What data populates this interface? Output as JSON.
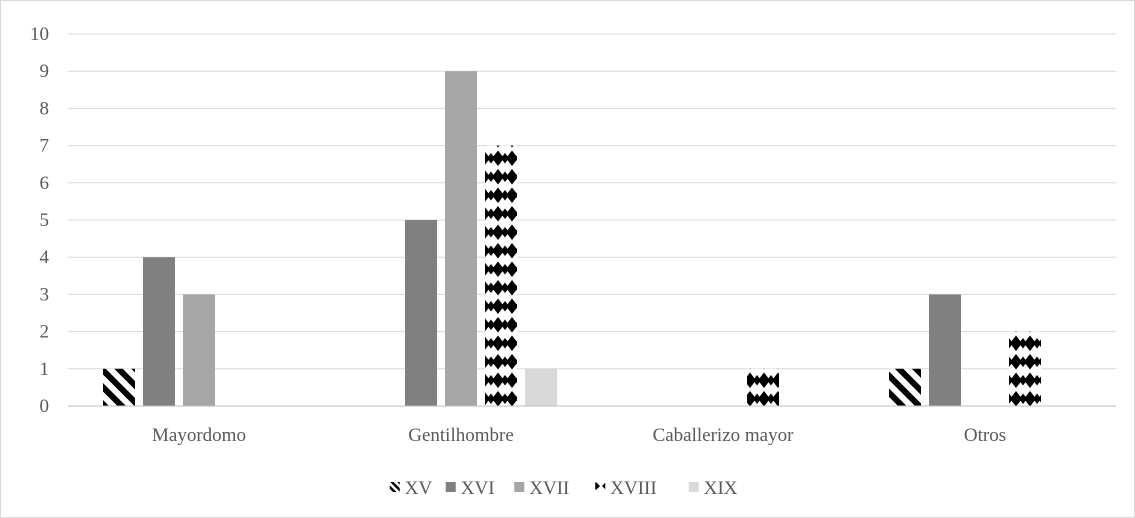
{
  "chart_data": {
    "type": "bar",
    "categories": [
      "Mayordomo",
      "Gentilhombre",
      "Caballerizo mayor",
      "Otros"
    ],
    "series": [
      {
        "name": "XV",
        "values": [
          1,
          0,
          0,
          1
        ],
        "fill": "pattern-diagonal",
        "color": "#000000"
      },
      {
        "name": "XVI",
        "values": [
          4,
          5,
          0,
          3
        ],
        "fill": "solid",
        "color": "#808080"
      },
      {
        "name": "XVII",
        "values": [
          3,
          9,
          0,
          0
        ],
        "fill": "solid",
        "color": "#a6a6a6"
      },
      {
        "name": "XVIII",
        "values": [
          0,
          7,
          1,
          2
        ],
        "fill": "pattern-diamond",
        "color": "#000000"
      },
      {
        "name": "XIX",
        "values": [
          0,
          1,
          0,
          0
        ],
        "fill": "solid",
        "color": "#d9d9d9"
      }
    ],
    "yticks": [
      "0",
      "1",
      "2",
      "3",
      "4",
      "5",
      "6",
      "7",
      "8",
      "9",
      "10"
    ],
    "ylim": [
      0,
      10
    ],
    "grid": true,
    "legend_position": "bottom",
    "title": "",
    "xlabel": "",
    "ylabel": ""
  },
  "colors": {
    "gridline": "#d9d9d9",
    "axis": "#bfbfbf",
    "text": "#595959"
  }
}
